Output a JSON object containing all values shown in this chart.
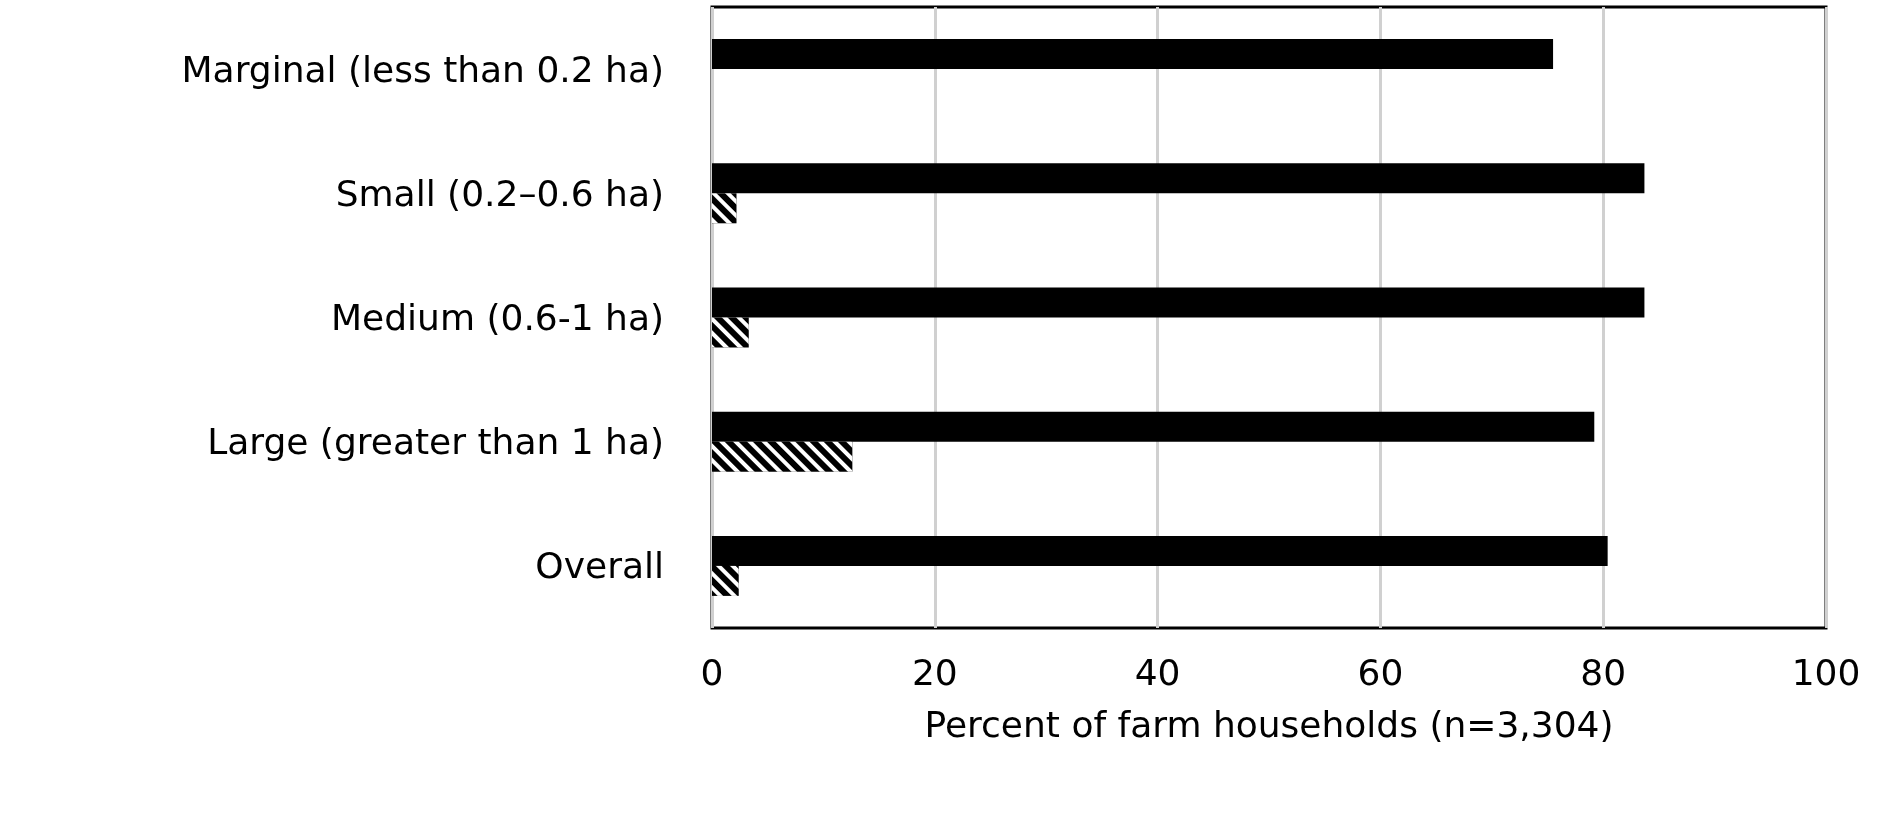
{
  "chart_data": {
    "type": "bar",
    "orientation": "horizontal",
    "xlabel": "Percent of farm households (n=3,304)",
    "categories": [
      "Marginal (less than 0.2 ha)",
      "Small (0.2–0.6 ha)",
      "Medium (0.6-1 ha)",
      "Large (greater than 1 ha)",
      "Overall"
    ],
    "series": [
      {
        "color": "#000000",
        "values": [
          75.5,
          83.7,
          83.7,
          79.2,
          80.4
        ]
      },
      {
        "color": "#000000",
        "values": [
          null,
          2.2,
          3.3,
          12.6,
          2.4
        ]
      }
    ],
    "xlim": [
      0,
      100
    ],
    "xticks": [
      0,
      20,
      40,
      60,
      80,
      100
    ],
    "grid": "x"
  }
}
